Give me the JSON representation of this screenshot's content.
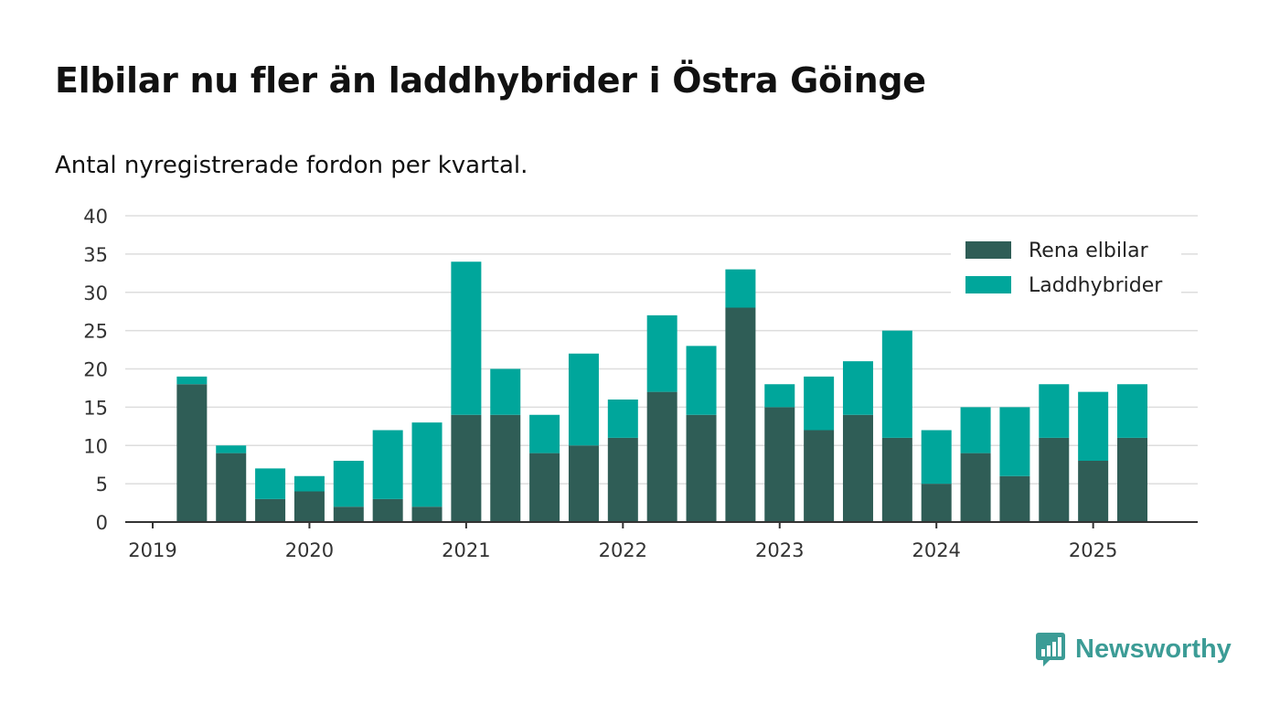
{
  "title": "Elbilar nu fler än laddhybrider i Östra Göinge",
  "subtitle": "Antal nyregistrerade fordon per kvartal.",
  "brand": {
    "name": "Newsworthy",
    "color": "#3c9c96",
    "icon": "chat-bar-chart-icon"
  },
  "colors": {
    "elbil": "#2f5d56",
    "laddhybrid": "#00a69b",
    "grid": "#dddddd",
    "axis": "#333333"
  },
  "chart_data": {
    "type": "bar",
    "stacked": true,
    "categories": [
      "2019 Q1",
      "2019 Q2",
      "2019 Q3",
      "2019 Q4",
      "2020 Q1",
      "2020 Q2",
      "2020 Q3",
      "2020 Q4",
      "2021 Q1",
      "2021 Q2",
      "2021 Q3",
      "2021 Q4",
      "2022 Q1",
      "2022 Q2",
      "2022 Q3",
      "2022 Q4",
      "2023 Q1",
      "2023 Q2",
      "2023 Q3",
      "2023 Q4",
      "2024 Q1",
      "2024 Q2",
      "2024 Q3",
      "2024 Q4",
      "2025 Q1",
      "2025 Q2"
    ],
    "series": [
      {
        "name": "Rena elbilar",
        "color": "#2f5d56",
        "values": [
          0,
          18,
          9,
          3,
          4,
          2,
          3,
          2,
          14,
          14,
          9,
          10,
          11,
          17,
          14,
          28,
          15,
          12,
          14,
          11,
          5,
          9,
          6,
          11,
          8,
          11
        ]
      },
      {
        "name": "Laddhybrider",
        "color": "#00a69b",
        "values": [
          0,
          1,
          1,
          4,
          2,
          6,
          9,
          11,
          20,
          6,
          5,
          12,
          5,
          10,
          9,
          5,
          3,
          7,
          7,
          14,
          7,
          6,
          9,
          7,
          9,
          7
        ]
      }
    ],
    "x_ticks": [
      "2019",
      "2020",
      "2021",
      "2022",
      "2023",
      "2024",
      "2025"
    ],
    "y_ticks": [
      0,
      5,
      10,
      15,
      20,
      25,
      30,
      35,
      40
    ],
    "ylim": [
      0,
      40
    ],
    "grid": true,
    "legend_position": "top-right"
  }
}
